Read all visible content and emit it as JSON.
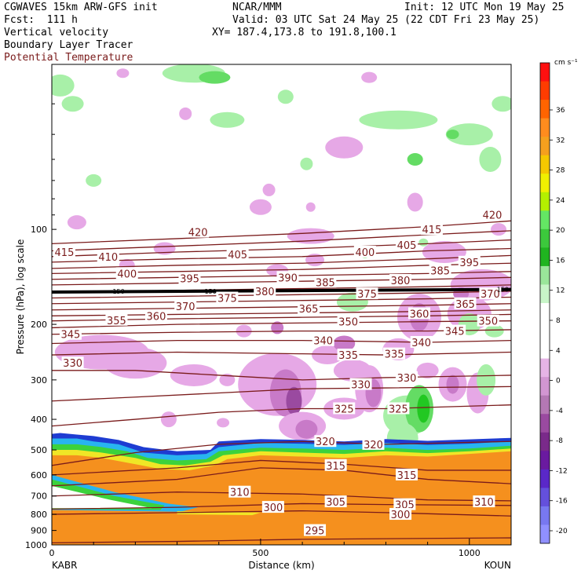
{
  "header": {
    "left1": "CGWAVES 15km ARW-GFS init",
    "left2": "Fcst:  111 h",
    "left3": "Vertical velocity",
    "left4": "Boundary Layer Tracer",
    "left5": "Potential Temperature",
    "center1": "NCAR/MMM",
    "right1": "Init: 12 UTC Mon 19 May 25",
    "right2": "Valid: 03 UTC Sat 24 May 25 (22 CDT Fri 23 May 25)",
    "right3": "XY= 187.4,173.8 to 191.8,100.1"
  },
  "colors": {
    "theta": "#7a1b1b",
    "pos_light": "#a8f0a8",
    "pos_mid": "#64dc64",
    "pos_strong": "#22c822",
    "neg_light": "#e6a8e6",
    "neg_mid": "#c87ac8",
    "neg_strong": "#9a4aa0",
    "tracer_orange": "#f5901e",
    "tracer_yellow": "#f0e626",
    "tracer_green": "#3cd23c",
    "tracer_cyan": "#28b4f0",
    "tracer_blue": "#1e3cd2"
  },
  "chart_data": {
    "type": "cross-section",
    "xlabel": "Distance (km)",
    "ylabel": "Pressure (hPa), log scale",
    "x_ticks": [
      "0",
      "500",
      "1000"
    ],
    "x_tick_values": [
      0,
      500,
      1000
    ],
    "xlim": [
      0,
      1100
    ],
    "y_ticks": [
      "100",
      "200",
      "300",
      "400",
      "500",
      "600",
      "700",
      "800",
      "900",
      "1000"
    ],
    "y_tick_values": [
      100,
      200,
      300,
      400,
      500,
      600,
      700,
      800,
      900,
      1000
    ],
    "ylim": [
      1000,
      30
    ],
    "y_scale": "log",
    "endpoints": {
      "left": "KABR",
      "right": "KOUN"
    },
    "colorbar": {
      "unit": "cm s⁻¹",
      "tick_labels": [
        "36",
        "32",
        "28",
        "24",
        "20",
        "16",
        "12",
        "8",
        "4",
        "0",
        "-4",
        "-8",
        "-12",
        "-16",
        "-20"
      ],
      "colors": [
        "#ff1010",
        "#ff3c00",
        "#ff6400",
        "#ff8c1e",
        "#f5a01e",
        "#f5c800",
        "#f0f000",
        "#b4f000",
        "#64e664",
        "#3cc83c",
        "#20b420",
        "#9ae69a",
        "#c8f5c8",
        "#ffffff",
        "#ffffff",
        "#ffffff",
        "#e6b4e6",
        "#d296d2",
        "#b478b4",
        "#9a4aa0",
        "#7a2a8a",
        "#6a1aa0",
        "#5a28c8",
        "#6450dc",
        "#7878f0",
        "#9090ff"
      ]
    },
    "theta_labels": [
      {
        "v": "415",
        "x": 30,
        "p": 118
      },
      {
        "v": "410",
        "x": 135,
        "p": 122
      },
      {
        "v": "420",
        "x": 350,
        "p": 102
      },
      {
        "v": "405",
        "x": 445,
        "p": 120
      },
      {
        "v": "400",
        "x": 180,
        "p": 138
      },
      {
        "v": "395",
        "x": 330,
        "p": 143
      },
      {
        "v": "390",
        "x": 565,
        "p": 142
      },
      {
        "v": "385",
        "x": 655,
        "p": 147
      },
      {
        "v": "380",
        "x": 510,
        "p": 157
      },
      {
        "v": "375",
        "x": 420,
        "p": 165
      },
      {
        "v": "370",
        "x": 320,
        "p": 175
      },
      {
        "v": "360",
        "x": 250,
        "p": 188
      },
      {
        "v": "355",
        "x": 155,
        "p": 194
      },
      {
        "v": "345",
        "x": 45,
        "p": 215
      },
      {
        "v": "365",
        "x": 615,
        "p": 178
      },
      {
        "v": "350",
        "x": 710,
        "p": 196
      },
      {
        "v": "340",
        "x": 650,
        "p": 225
      },
      {
        "v": "335",
        "x": 710,
        "p": 250
      },
      {
        "v": "330",
        "x": 50,
        "p": 265
      },
      {
        "v": "330",
        "x": 740,
        "p": 310
      },
      {
        "v": "325",
        "x": 700,
        "p": 370
      },
      {
        "v": "320",
        "x": 655,
        "p": 470
      },
      {
        "v": "315",
        "x": 680,
        "p": 560
      },
      {
        "v": "310",
        "x": 450,
        "p": 680
      },
      {
        "v": "305",
        "x": 680,
        "p": 730
      },
      {
        "v": "300",
        "x": 530,
        "p": 760
      },
      {
        "v": "295",
        "x": 630,
        "p": 900
      },
      {
        "v": "400",
        "x": 750,
        "p": 118
      },
      {
        "v": "405",
        "x": 850,
        "p": 112
      },
      {
        "v": "415",
        "x": 910,
        "p": 100
      },
      {
        "v": "420",
        "x": 1055,
        "p": 90
      },
      {
        "v": "395",
        "x": 1000,
        "p": 127
      },
      {
        "v": "385",
        "x": 930,
        "p": 135
      },
      {
        "v": "380",
        "x": 835,
        "p": 145
      },
      {
        "v": "375",
        "x": 755,
        "p": 160
      },
      {
        "v": "370",
        "x": 1050,
        "p": 160
      },
      {
        "v": "365",
        "x": 990,
        "p": 172
      },
      {
        "v": "360",
        "x": 880,
        "p": 185
      },
      {
        "v": "350",
        "x": 1045,
        "p": 195
      },
      {
        "v": "345",
        "x": 965,
        "p": 210
      },
      {
        "v": "340",
        "x": 885,
        "p": 228
      },
      {
        "v": "335",
        "x": 820,
        "p": 248
      },
      {
        "v": "330",
        "x": 850,
        "p": 295
      },
      {
        "v": "325",
        "x": 830,
        "p": 370
      },
      {
        "v": "320",
        "x": 770,
        "p": 480
      },
      {
        "v": "315",
        "x": 850,
        "p": 600
      },
      {
        "v": "305",
        "x": 845,
        "p": 745
      },
      {
        "v": "310",
        "x": 1035,
        "p": 730
      },
      {
        "v": "300",
        "x": 835,
        "p": 800
      }
    ],
    "tropopause_labels": [
      "150",
      "150",
      "150"
    ]
  }
}
